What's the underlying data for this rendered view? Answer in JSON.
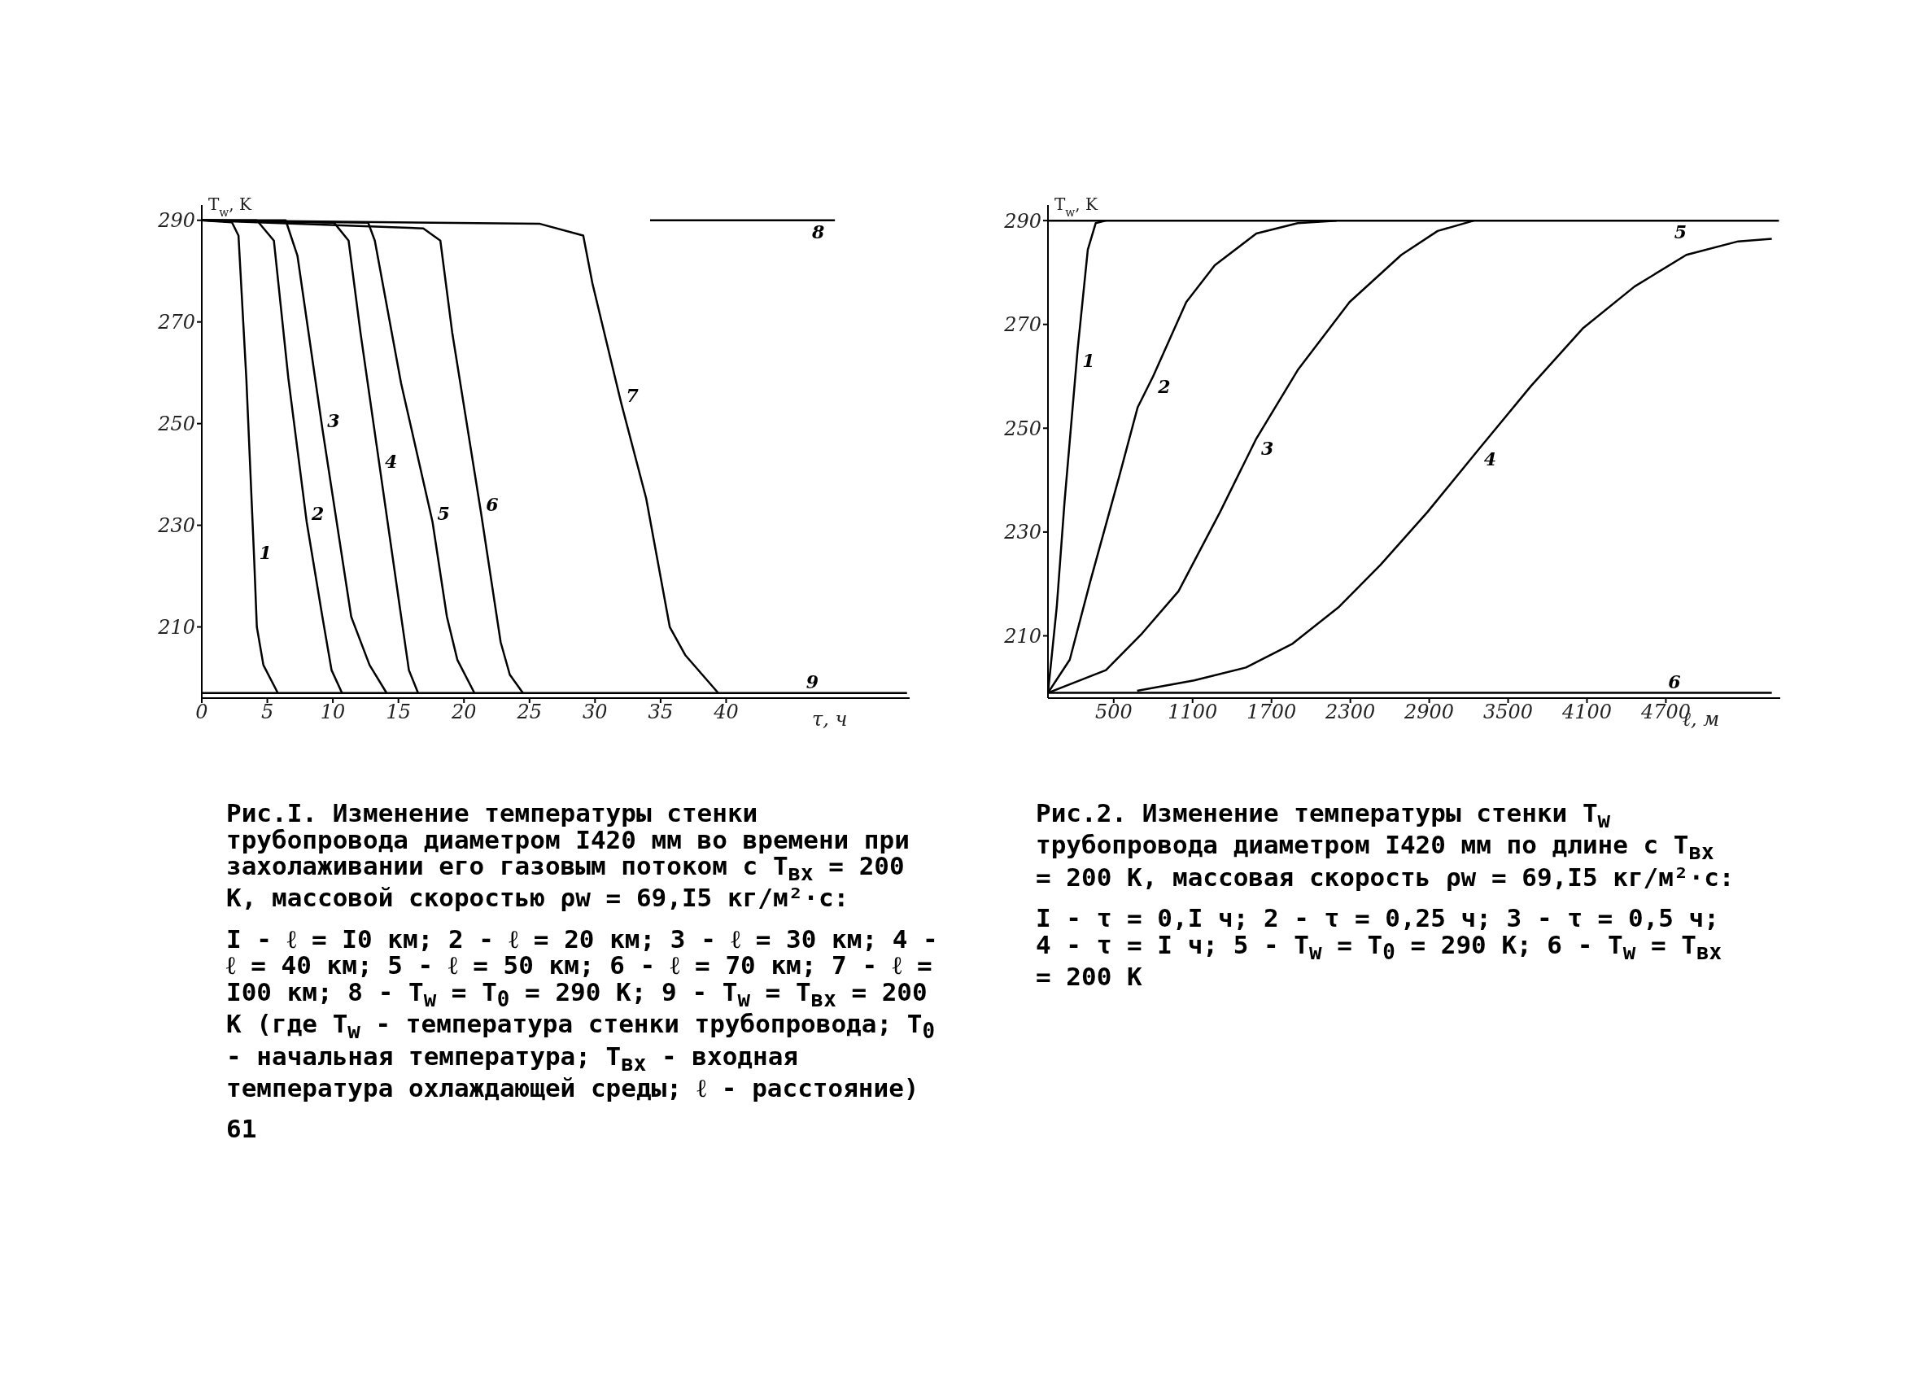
{
  "chart_data": [
    {
      "type": "line",
      "xlabel": "τ, ч",
      "ylabel": "T$_{w}$, K",
      "xlim": [
        0,
        54
      ],
      "xticks": [
        0,
        5,
        10,
        15,
        20,
        25,
        30,
        35,
        40
      ],
      "ylim": [
        196,
        293
      ],
      "yticks": [
        210,
        230,
        250,
        270,
        290
      ],
      "series": [
        {
          "name": "1",
          "color": "#000000",
          "x": [
            0,
            2.3,
            2.8,
            3.4,
            4.0,
            4.2,
            4.7,
            5.8
          ],
          "values": [
            290,
            289.6,
            287,
            258.8,
            223.1,
            210,
            202.5,
            197
          ]
        },
        {
          "name": "2",
          "color": "#000000",
          "x": [
            0,
            4.2,
            5.5,
            6.6,
            8.0,
            9.2,
            9.9,
            10.7
          ],
          "values": [
            290,
            290,
            286,
            259,
            230.7,
            212,
            201.5,
            197
          ]
        },
        {
          "name": "3",
          "color": "#000000",
          "x": [
            0,
            6.4,
            7.3,
            9.2,
            11.4,
            12.8,
            14.1
          ],
          "values": [
            290,
            290,
            283,
            249,
            212,
            202.5,
            197
          ]
        },
        {
          "name": "4",
          "color": "#000000",
          "x": [
            0,
            10.1,
            11.2,
            12.1,
            13.6,
            15.1,
            15.8,
            16.5
          ],
          "values": [
            290,
            289.5,
            286,
            268,
            241,
            214,
            201.5,
            197
          ]
        },
        {
          "name": "5",
          "color": "#000000",
          "x": [
            0,
            12.7,
            13.2,
            15.2,
            17.6,
            18.7,
            19.5,
            20.8
          ],
          "values": [
            290,
            289.5,
            286,
            258,
            230.7,
            212,
            203.5,
            197
          ]
        },
        {
          "name": "6",
          "color": "#000000",
          "x": [
            0,
            16.9,
            18.2,
            19.1,
            21.3,
            22.8,
            23.5,
            24.5
          ],
          "values": [
            290,
            288.4,
            286,
            268,
            232.5,
            207,
            200.6,
            197
          ]
        },
        {
          "name": "7",
          "color": "#000000",
          "x": [
            0,
            25.8,
            29.1,
            29.8,
            32.0,
            33.9,
            35.7,
            36.9,
            39.4
          ],
          "values": [
            290,
            289.3,
            287,
            277.6,
            254,
            235.3,
            210,
            204.4,
            197
          ]
        },
        {
          "name": "8",
          "color": "#000000",
          "x": [
            34.2,
            48.3
          ],
          "values": [
            290,
            290
          ]
        },
        {
          "name": "9",
          "color": "#000000",
          "x": [
            0,
            53.8
          ],
          "values": [
            197,
            197
          ]
        }
      ],
      "annotations": [
        "Рис.I. Изменение температуры стенки трубопровода диаметром I420 мм во времени при захолаживании его газовым потоком с T$_{вх}$ = 200 К, массовой скоростью ρw = 69,I5 кг/м²·с:",
        "I - ℓ = I0 км; 2 - ℓ = 20 км; 3 - ℓ = 30 км; 4 - ℓ = 40 км; 5 - ℓ = 50 км; 6 - ℓ = 70 км; 7 - ℓ = I00 км; 8 - T$_{w}$ = T$_{0}$ = 290 К; 9 - T$_{w}$ = T$_{вх}$ = 200 К (где T$_{w}$ - температура стенки трубопровода; T$_{0}$ - начальная температура; T$_{вх}$ - входная температура охлаждающей среды; ℓ - расстояние)",
        "61"
      ]
    },
    {
      "type": "line",
      "xlabel": "ℓ, м",
      "ylabel": "T$_{w}$, K",
      "xlim": [
        0,
        5570
      ],
      "xticks": [
        500,
        1100,
        1700,
        2300,
        2900,
        3500,
        4100,
        4700
      ],
      "ylim": [
        198,
        293
      ],
      "yticks": [
        210,
        230,
        250,
        270,
        290
      ],
      "series": [
        {
          "name": "1",
          "color": "#000000",
          "x": [
            0,
            67,
            126,
            225,
            303,
            363,
            441
          ],
          "values": [
            199,
            215.6,
            235.8,
            265,
            284.4,
            289.5,
            290
          ]
        },
        {
          "name": "2",
          "color": "#000000",
          "x": [
            0,
            166,
            323,
            544,
            682,
            800,
            1052,
            1269,
            1585,
            1900,
            2195
          ],
          "values": [
            199,
            205.4,
            220.6,
            240.9,
            254,
            260,
            274.3,
            281.4,
            287.5,
            289.5,
            290
          ]
        },
        {
          "name": "3",
          "color": "#000000",
          "x": [
            0,
            441,
            717,
            993,
            1308,
            1585,
            1900,
            2294,
            2688,
            2964,
            3240
          ],
          "values": [
            199,
            203.4,
            210.5,
            218.6,
            233.8,
            248,
            261.2,
            274.3,
            283.4,
            288,
            290
          ]
        },
        {
          "name": "4",
          "color": "#000000",
          "x": [
            678,
            1112,
            1506,
            1861,
            2215,
            2530,
            2885,
            3279,
            3673,
            4067,
            4462,
            4856,
            5250,
            5506
          ],
          "values": [
            199.4,
            201.4,
            203.9,
            208.5,
            215.6,
            223.7,
            233.8,
            246,
            258.1,
            269.2,
            277.3,
            283.4,
            286,
            286.5
          ]
        },
        {
          "name": "5",
          "color": "#000000",
          "x": [
            0,
            5560
          ],
          "values": [
            290,
            290
          ]
        },
        {
          "name": "6",
          "color": "#000000",
          "x": [
            0,
            5506
          ],
          "values": [
            199,
            199
          ]
        }
      ],
      "annotations": [
        "Рис.2. Изменение температуры стенки T$_{w}$ трубопровода диаметром I420 мм по длине с T$_{вх}$ = 200 К, массовая скорость ρw = 69,I5 кг/м²·с:",
        "I - τ = 0,I ч; 2 - τ = 0,25 ч; 3 - τ = 0,5 ч; 4 - τ = I ч; 5 - T$_{w}$ = T$_{0}$ = 290 К; 6 - T$_{w}$ = T$_{вх}$ = 200 К"
      ]
    }
  ]
}
